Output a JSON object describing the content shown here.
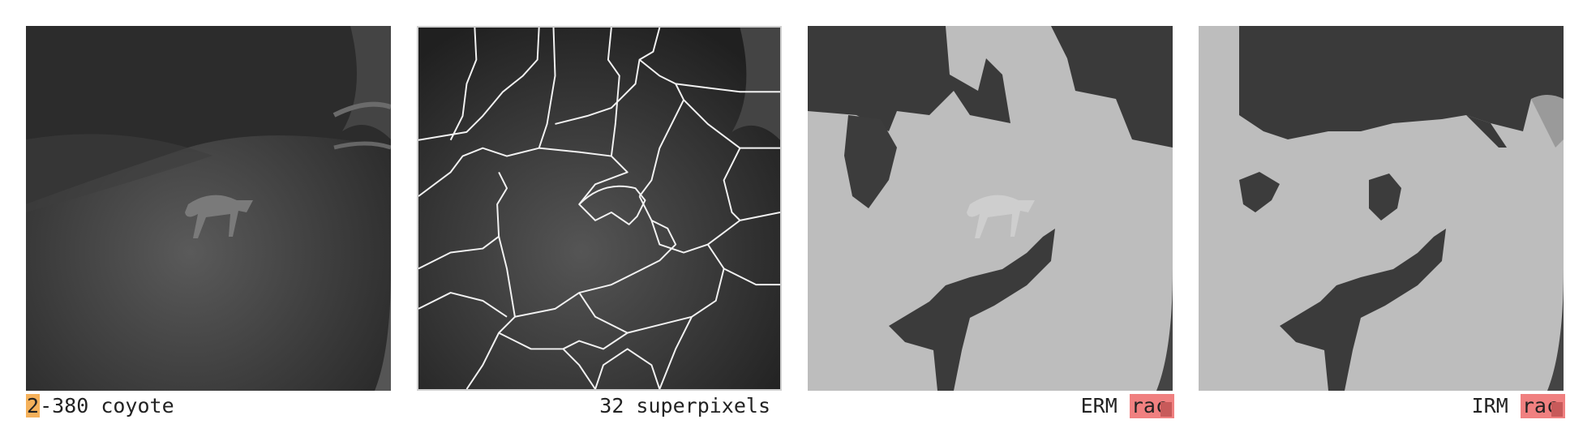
{
  "panels": [
    {
      "id": "original",
      "caption_highlight": "2",
      "caption_rest": "-380 coyote",
      "highlight_color": "#f5b15b"
    },
    {
      "id": "superpixels",
      "caption": "32 superpixels"
    },
    {
      "id": "erm",
      "method": "ERM",
      "label": "rac",
      "label_color": "#f08080",
      "swatch_color": "#c85a5a"
    },
    {
      "id": "irm",
      "method": "IRM",
      "label": "rac",
      "label_color": "#f08080",
      "swatch_color": "#c85a5a"
    }
  ]
}
